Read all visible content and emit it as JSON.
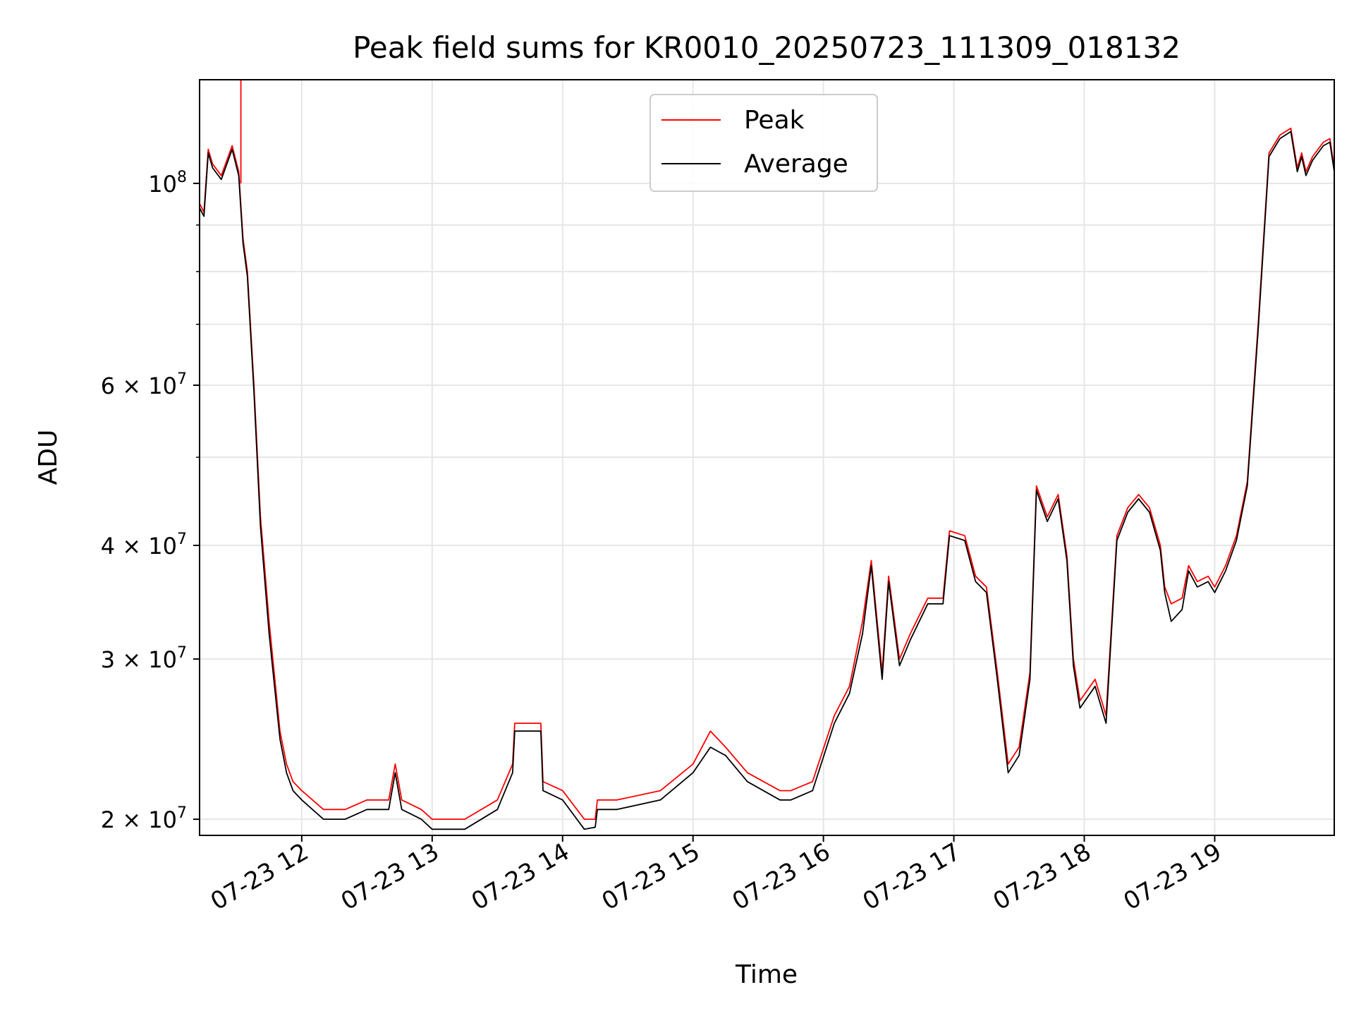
{
  "chart_data": {
    "type": "line",
    "title": "Peak field sums for KR0010_20250723_111309_018132",
    "xlabel": "Time",
    "ylabel": "ADU",
    "yscale": "log",
    "xlim": [
      "2025-07-23 11:13",
      "2025-07-23 19:55"
    ],
    "ylim": [
      19200000,
      130000000
    ],
    "grid": true,
    "legend": "upper center",
    "x_ticks": [
      {
        "t": "2025-07-23 12:00",
        "label": "07-23 12"
      },
      {
        "t": "2025-07-23 13:00",
        "label": "07-23 13"
      },
      {
        "t": "2025-07-23 14:00",
        "label": "07-23 14"
      },
      {
        "t": "2025-07-23 15:00",
        "label": "07-23 15"
      },
      {
        "t": "2025-07-23 16:00",
        "label": "07-23 16"
      },
      {
        "t": "2025-07-23 17:00",
        "label": "07-23 17"
      },
      {
        "t": "2025-07-23 18:00",
        "label": "07-23 18"
      },
      {
        "t": "2025-07-23 19:00",
        "label": "07-23 19"
      }
    ],
    "y_ticks_major": [
      {
        "v": 20000000,
        "mant": "2",
        "exp": "7"
      },
      {
        "v": 30000000,
        "mant": "3",
        "exp": "7"
      },
      {
        "v": 40000000,
        "mant": "4",
        "exp": "7"
      },
      {
        "v": 60000000,
        "mant": "6",
        "exp": "7"
      },
      {
        "v": 100000000,
        "mant": "",
        "exp": "8"
      }
    ],
    "y_ticks_minor": [
      50000000,
      70000000,
      80000000,
      90000000
    ],
    "x": [
      "2025-07-23 11:13",
      "2025-07-23 11:15",
      "2025-07-23 11:17",
      "2025-07-23 11:19",
      "2025-07-23 11:23",
      "2025-07-23 11:28",
      "2025-07-23 11:31",
      "2025-07-23 11:33",
      "2025-07-23 11:35",
      "2025-07-23 11:38",
      "2025-07-23 11:41",
      "2025-07-23 11:45",
      "2025-07-23 11:50",
      "2025-07-23 11:53",
      "2025-07-23 11:56",
      "2025-07-23 12:00",
      "2025-07-23 12:10",
      "2025-07-23 12:20",
      "2025-07-23 12:30",
      "2025-07-23 12:40",
      "2025-07-23 12:43",
      "2025-07-23 12:46",
      "2025-07-23 12:55",
      "2025-07-23 13:00",
      "2025-07-23 13:15",
      "2025-07-23 13:30",
      "2025-07-23 13:37",
      "2025-07-23 13:38",
      "2025-07-23 13:50",
      "2025-07-23 13:51",
      "2025-07-23 14:00",
      "2025-07-23 14:10",
      "2025-07-23 14:15",
      "2025-07-23 14:16",
      "2025-07-23 14:25",
      "2025-07-23 14:45",
      "2025-07-23 15:00",
      "2025-07-23 15:08",
      "2025-07-23 15:15",
      "2025-07-23 15:25",
      "2025-07-23 15:40",
      "2025-07-23 15:45",
      "2025-07-23 15:55",
      "2025-07-23 16:05",
      "2025-07-23 16:12",
      "2025-07-23 16:18",
      "2025-07-23 16:22",
      "2025-07-23 16:27",
      "2025-07-23 16:30",
      "2025-07-23 16:35",
      "2025-07-23 16:40",
      "2025-07-23 16:48",
      "2025-07-23 16:55",
      "2025-07-23 16:58",
      "2025-07-23 17:05",
      "2025-07-23 17:10",
      "2025-07-23 17:15",
      "2025-07-23 17:20",
      "2025-07-23 17:25",
      "2025-07-23 17:30",
      "2025-07-23 17:35",
      "2025-07-23 17:38",
      "2025-07-23 17:43",
      "2025-07-23 17:48",
      "2025-07-23 17:52",
      "2025-07-23 17:55",
      "2025-07-23 17:58",
      "2025-07-23 18:05",
      "2025-07-23 18:10",
      "2025-07-23 18:15",
      "2025-07-23 18:20",
      "2025-07-23 18:25",
      "2025-07-23 18:30",
      "2025-07-23 18:35",
      "2025-07-23 18:37",
      "2025-07-23 18:40",
      "2025-07-23 18:45",
      "2025-07-23 18:48",
      "2025-07-23 18:52",
      "2025-07-23 18:57",
      "2025-07-23 19:00",
      "2025-07-23 19:05",
      "2025-07-23 19:10",
      "2025-07-23 19:15",
      "2025-07-23 19:20",
      "2025-07-23 19:25",
      "2025-07-23 19:30",
      "2025-07-23 19:35",
      "2025-07-23 19:38",
      "2025-07-23 19:40",
      "2025-07-23 19:42",
      "2025-07-23 19:45",
      "2025-07-23 19:50",
      "2025-07-23 19:53",
      "2025-07-23 19:55"
    ],
    "series": [
      {
        "name": "Peak",
        "color": "#ff0000",
        "values": [
          95000000,
          93000000,
          109000000,
          105000000,
          102000000,
          110000000,
          103000000,
          87000000,
          80000000,
          60000000,
          43000000,
          33000000,
          25000000,
          23000000,
          22000000,
          21500000,
          20500000,
          20500000,
          21000000,
          21000000,
          23000000,
          21000000,
          20500000,
          20000000,
          20000000,
          21000000,
          23000000,
          25500000,
          25500000,
          22000000,
          21500000,
          20000000,
          20000000,
          21000000,
          21000000,
          21500000,
          23000000,
          25000000,
          24000000,
          22500000,
          21500000,
          21500000,
          22000000,
          26000000,
          28000000,
          33000000,
          38500000,
          29000000,
          37000000,
          30000000,
          32000000,
          35000000,
          35000000,
          41500000,
          41000000,
          37000000,
          36000000,
          29000000,
          23000000,
          24000000,
          29000000,
          46500000,
          43000000,
          45500000,
          39000000,
          30000000,
          27000000,
          28500000,
          26000000,
          41000000,
          44000000,
          45500000,
          44000000,
          40000000,
          36000000,
          34500000,
          35000000,
          38000000,
          36500000,
          37000000,
          36000000,
          38000000,
          41000000,
          47000000,
          70000000,
          108000000,
          113000000,
          115000000,
          104000000,
          108000000,
          103000000,
          107000000,
          111000000,
          112000000,
          104000000
        ]
      },
      {
        "name": "Average",
        "color": "#000000",
        "values": [
          94000000,
          92000000,
          108000000,
          104000000,
          101000000,
          109000000,
          102000000,
          86000000,
          79000000,
          59000000,
          42000000,
          32000000,
          24500000,
          22500000,
          21500000,
          21000000,
          20000000,
          20000000,
          20500000,
          20500000,
          22500000,
          20500000,
          20000000,
          19500000,
          19500000,
          20500000,
          22500000,
          25000000,
          25000000,
          21500000,
          21000000,
          19500000,
          19600000,
          20500000,
          20500000,
          21000000,
          22500000,
          24000000,
          23500000,
          22000000,
          21000000,
          21000000,
          21500000,
          25500000,
          27500000,
          32000000,
          38000000,
          28500000,
          36500000,
          29500000,
          31500000,
          34500000,
          34500000,
          41000000,
          40500000,
          36500000,
          35500000,
          28500000,
          22500000,
          23500000,
          28500000,
          46000000,
          42500000,
          45000000,
          38500000,
          29500000,
          26500000,
          28000000,
          25500000,
          40500000,
          43500000,
          45000000,
          43500000,
          39500000,
          35500000,
          33000000,
          34000000,
          37500000,
          36000000,
          36500000,
          35500000,
          37500000,
          40500000,
          46500000,
          69000000,
          107000000,
          112000000,
          114000000,
          103000000,
          107000000,
          102000000,
          106000000,
          110000000,
          111000000,
          103000000
        ]
      }
    ],
    "annotations": [
      {
        "series": "Peak",
        "t": "2025-07-23 11:32",
        "value": 130000000,
        "kind": "spike"
      }
    ]
  }
}
